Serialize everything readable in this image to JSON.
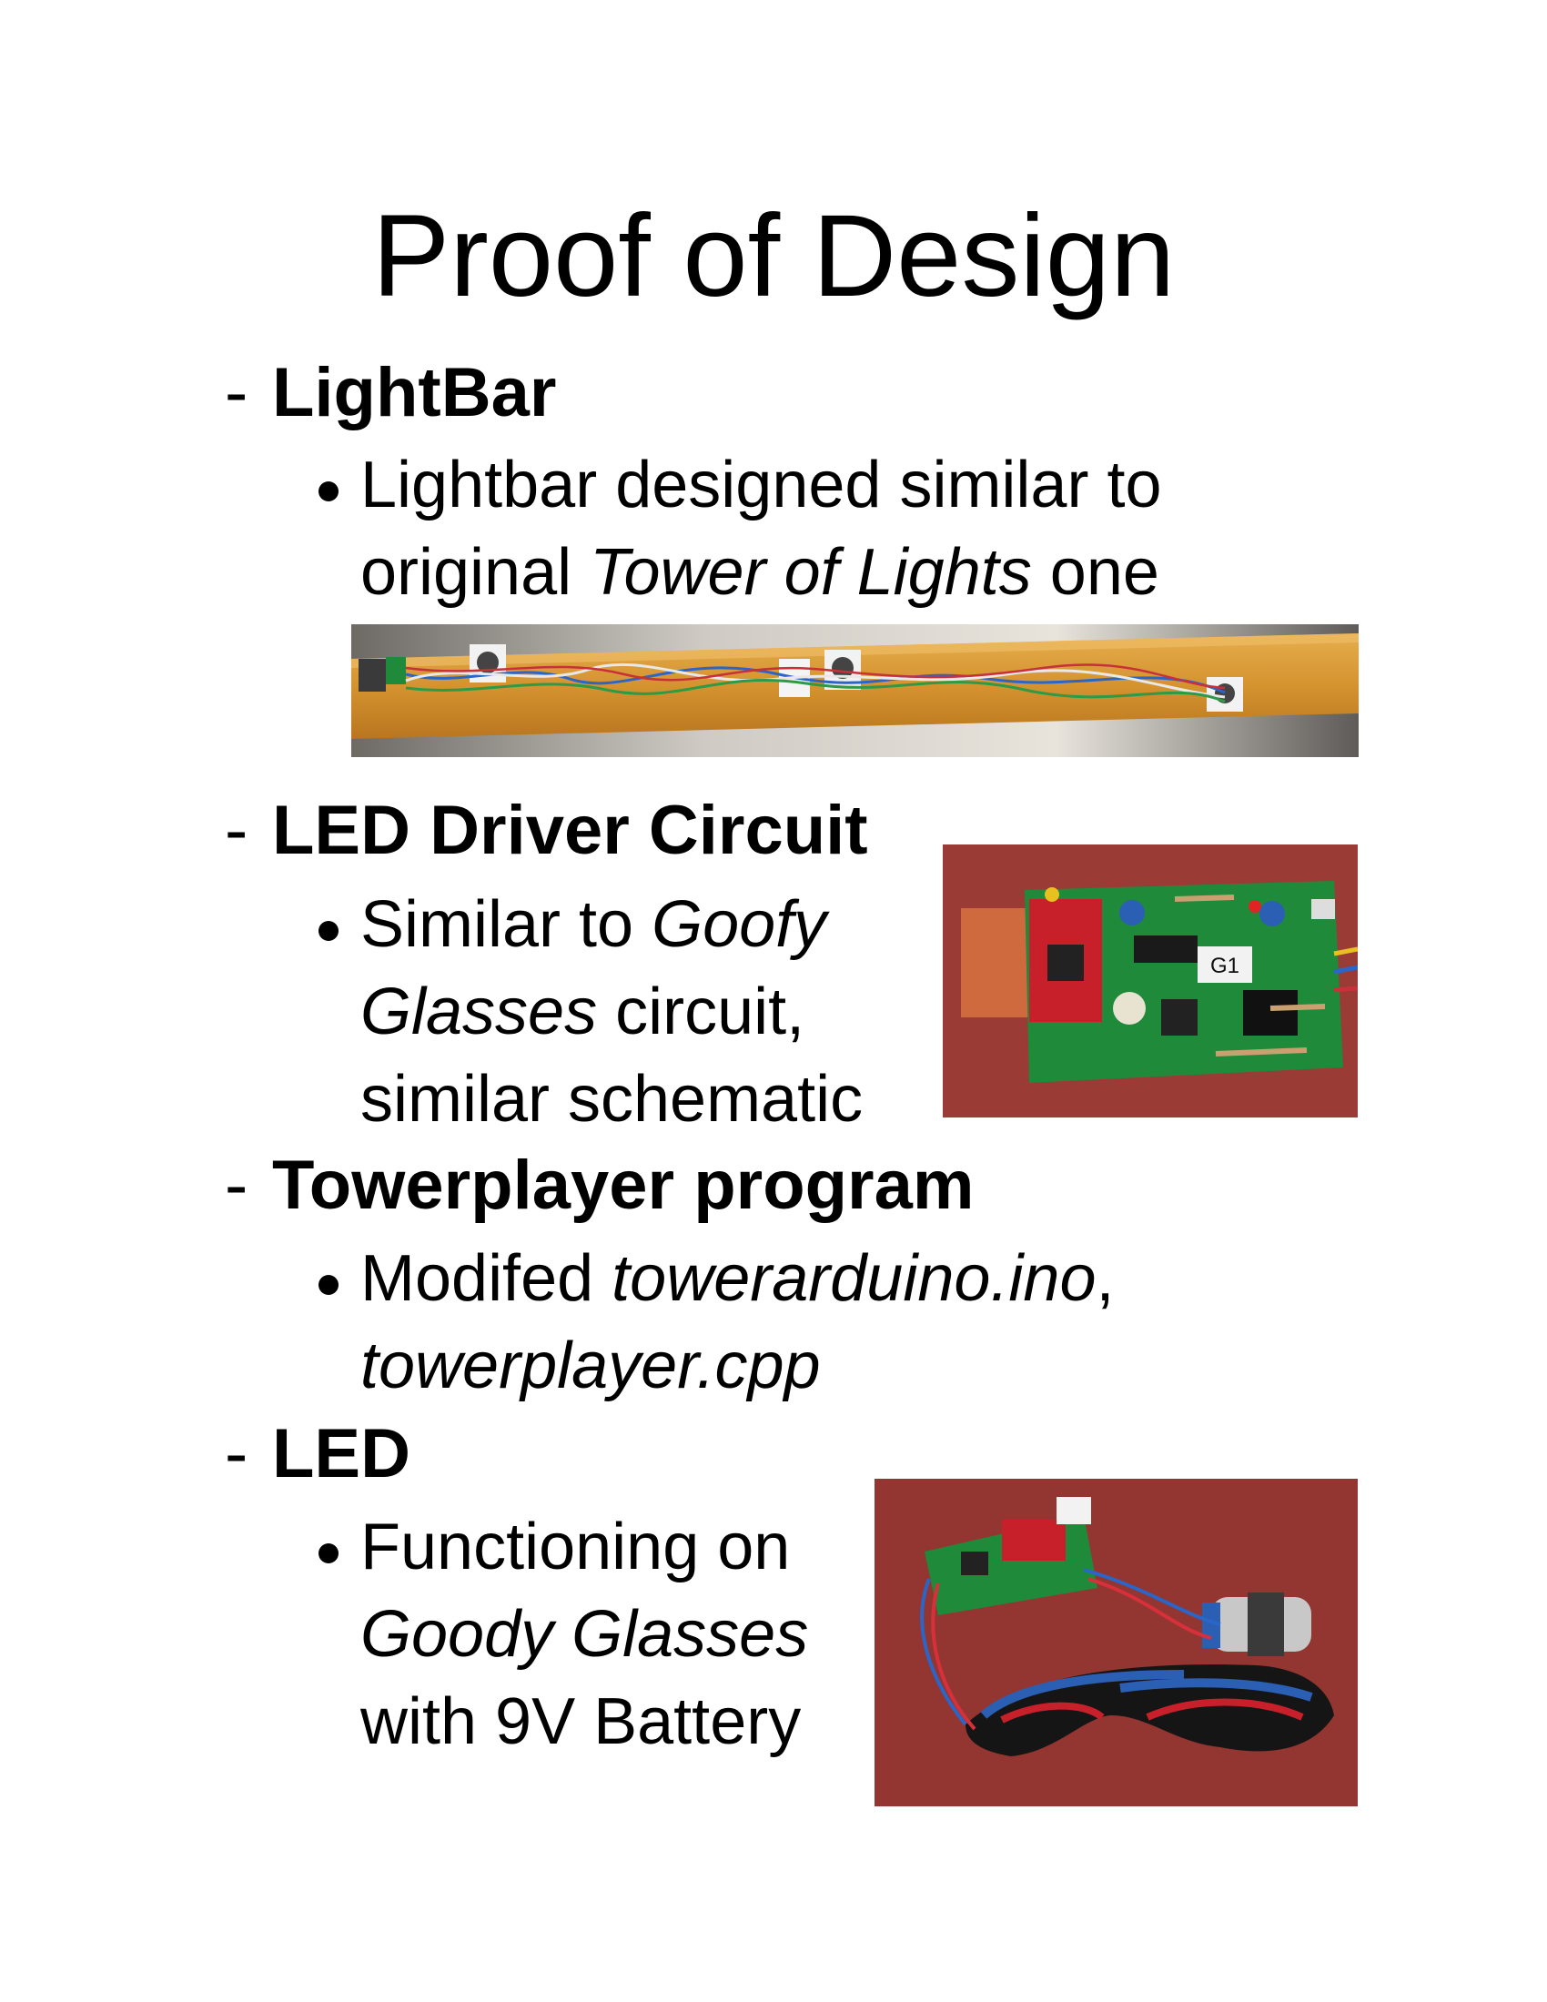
{
  "title": "Proof of Design",
  "sections": {
    "lightbar": {
      "dash": "-",
      "heading": "LightBar",
      "bullet": {
        "line1": "Lightbar designed similar to",
        "line2_pre": "original ",
        "line2_italic": "Tower of Lights",
        "line2_post": " one"
      }
    },
    "driver": {
      "dash": "-",
      "heading": "LED Driver Circuit",
      "bullet": {
        "line1_pre": "Similar to ",
        "line1_italic": "Goofy",
        "line2_italic": "Glasses",
        "line2_post": " circuit,",
        "line3": "similar schematic"
      },
      "photo_label": "G1"
    },
    "towerplayer": {
      "dash": "-",
      "heading": "Towerplayer program",
      "bullet": {
        "line1_pre": "Modifed ",
        "line1_italic": "towerarduino.ino",
        "line1_post": ",",
        "line2_italic": "towerplayer.cpp"
      }
    },
    "led": {
      "dash": "-",
      "heading": "LED",
      "bullet": {
        "line1": "Functioning on",
        "line2_italic": "Goody Glasses",
        "line3": "with 9V Battery"
      }
    }
  },
  "colors": {
    "board_green": "#1f8a3a",
    "mcu_red": "#c8202a",
    "desk_red": "#9c3a34",
    "wood": "#d79a3a"
  }
}
